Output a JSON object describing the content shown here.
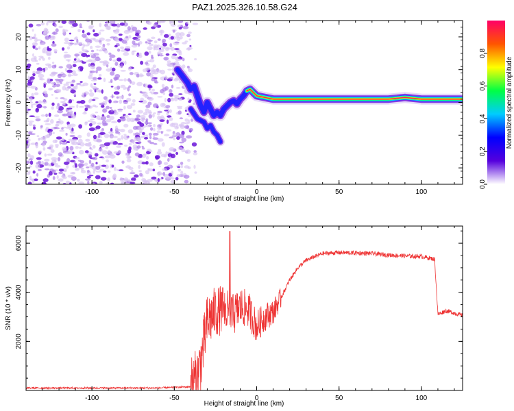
{
  "title": "PAZ1.2025.326.10.58.G24",
  "chart_data": [
    {
      "type": "heatmap",
      "title": "PAZ1.2025.326.10.58.G24",
      "xlabel": "Height of straight line (km)",
      "ylabel": "Frequency (Hz)",
      "xlim": [
        -140,
        125
      ],
      "ylim": [
        -25,
        25
      ],
      "xticks": [
        -100,
        -50,
        0,
        50,
        100
      ],
      "yticks": [
        -20,
        -10,
        0,
        10,
        20
      ],
      "noise_region_x": [
        -140,
        -45
      ],
      "dominant_frequency_track": {
        "x": [
          -48,
          -45,
          -42,
          -40,
          -38,
          -36,
          -34,
          -32,
          -30,
          -28,
          -26,
          -24,
          -22,
          -20,
          -18,
          -16,
          -14,
          -12,
          -10,
          -8,
          -6,
          -4,
          -2,
          0,
          5,
          10,
          20,
          30,
          40,
          50,
          60,
          70,
          80,
          90,
          100,
          110,
          125
        ],
        "y": [
          10,
          8,
          6,
          4,
          5,
          2,
          -1,
          -3,
          0,
          -2,
          -4,
          -3,
          -4,
          -2,
          -1,
          0,
          0.5,
          -0.5,
          1,
          2,
          3.5,
          4,
          3,
          2,
          1.5,
          1,
          1,
          1,
          1,
          1,
          1,
          1,
          1,
          1.5,
          1,
          1,
          1
        ]
      },
      "secondary_branch": {
        "x": [
          -40,
          -36,
          -32,
          -30,
          -28,
          -26,
          -24,
          -22
        ],
        "y": [
          -2,
          -5,
          -6,
          -8,
          -7,
          -9,
          -10,
          -12
        ]
      },
      "colorbar": {
        "label": "Normalized spectral amplitude",
        "range": [
          0,
          1
        ],
        "ticks": [
          "0.0",
          "0.2",
          "0.4",
          "0.6",
          "0.8"
        ],
        "colors": [
          "#ffffff",
          "#5500dd",
          "#0000ff",
          "#00ccff",
          "#00ff44",
          "#ffff00",
          "#ff5500",
          "#ff0066"
        ]
      }
    },
    {
      "type": "line",
      "xlabel": "Height of straight line (km)",
      "ylabel": "SNR (10 * v/v)",
      "xlim": [
        -140,
        125
      ],
      "ylim": [
        0,
        6700
      ],
      "xticks": [
        -100,
        -50,
        0,
        50,
        100
      ],
      "yticks": [
        2000,
        4000,
        6000
      ],
      "line_color": "#ee3333",
      "series": [
        {
          "name": "SNR",
          "x": [
            -140,
            -100,
            -60,
            -40,
            -36,
            -33,
            -30,
            -25,
            -20,
            -15,
            -10,
            -5,
            0,
            5,
            10,
            15,
            20,
            25,
            30,
            35,
            40,
            45,
            50,
            60,
            70,
            80,
            90,
            100,
            108,
            110,
            115,
            125
          ],
          "y": [
            100,
            100,
            100,
            150,
            500,
            1500,
            2800,
            3200,
            3300,
            3000,
            3400,
            3300,
            2600,
            3000,
            3200,
            3800,
            4500,
            5000,
            5300,
            5450,
            5580,
            5600,
            5620,
            5600,
            5580,
            5520,
            5480,
            5460,
            5350,
            3100,
            3250,
            3050
          ]
        }
      ]
    }
  ]
}
